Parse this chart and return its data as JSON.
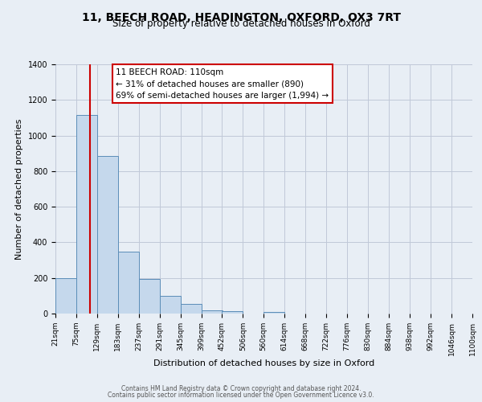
{
  "title": "11, BEECH ROAD, HEADINGTON, OXFORD, OX3 7RT",
  "subtitle": "Size of property relative to detached houses in Oxford",
  "xlabel": "Distribution of detached houses by size in Oxford",
  "ylabel": "Number of detached properties",
  "bar_left_edges": [
    21,
    75,
    129,
    183,
    237,
    291,
    345,
    399,
    452,
    506,
    560,
    614,
    668,
    722,
    776,
    830,
    884,
    938,
    992,
    1046
  ],
  "bar_heights": [
    200,
    1115,
    885,
    350,
    195,
    100,
    55,
    20,
    15,
    0,
    10,
    0,
    0,
    0,
    0,
    0,
    0,
    0,
    0,
    0
  ],
  "bin_width": 54,
  "bar_color": "#c5d8ec",
  "bar_edge_color": "#5b8db8",
  "property_size": 110,
  "red_line_color": "#cc0000",
  "annotation_line1": "11 BEECH ROAD: 110sqm",
  "annotation_line2": "← 31% of detached houses are smaller (890)",
  "annotation_line3": "69% of semi-detached houses are larger (1,994) →",
  "annotation_box_facecolor": "#ffffff",
  "annotation_box_edgecolor": "#cc0000",
  "ylim": [
    0,
    1400
  ],
  "yticks": [
    0,
    200,
    400,
    600,
    800,
    1000,
    1200,
    1400
  ],
  "tick_labels": [
    "21sqm",
    "75sqm",
    "129sqm",
    "183sqm",
    "237sqm",
    "291sqm",
    "345sqm",
    "399sqm",
    "452sqm",
    "506sqm",
    "560sqm",
    "614sqm",
    "668sqm",
    "722sqm",
    "776sqm",
    "830sqm",
    "884sqm",
    "938sqm",
    "992sqm",
    "1046sqm",
    "1100sqm"
  ],
  "background_color": "#e8eef5",
  "grid_color": "#c0c8d8",
  "footer_line1": "Contains HM Land Registry data © Crown copyright and database right 2024.",
  "footer_line2": "Contains public sector information licensed under the Open Government Licence v3.0.",
  "title_fontsize": 10,
  "subtitle_fontsize": 8.5,
  "axis_label_fontsize": 8,
  "tick_fontsize": 6.5,
  "annotation_fontsize": 7.5,
  "footer_fontsize": 5.5
}
